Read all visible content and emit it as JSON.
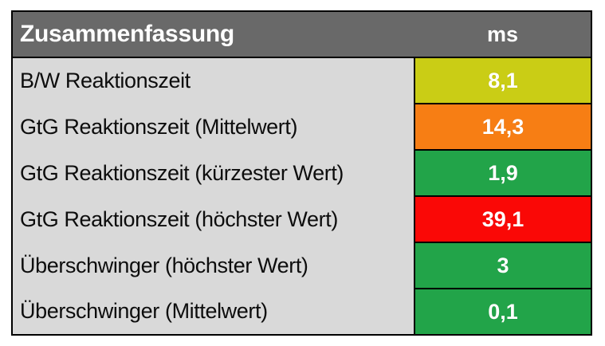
{
  "table": {
    "header": {
      "title": "Zusammenfassung",
      "unit": "ms"
    },
    "rows": [
      {
        "label": "B/W Reaktionszeit",
        "value": "8,1",
        "color": "#cacd15"
      },
      {
        "label": "GtG Reaktionszeit (Mittelwert)",
        "value": "14,3",
        "color": "#f77e14"
      },
      {
        "label": "GtG Reaktionszeit (kürzester Wert)",
        "value": "1,9",
        "color": "#22a449"
      },
      {
        "label": "GtG Reaktionszeit (höchster Wert)",
        "value": "39,1",
        "color": "#fa0806"
      },
      {
        "label": "Überschwinger (höchster Wert)",
        "value": "3",
        "color": "#22a449"
      },
      {
        "label": "Überschwinger (Mittelwert)",
        "value": "0,1",
        "color": "#22a449"
      }
    ],
    "colors": {
      "header_bg": "#696969",
      "header_text": "#ffffff",
      "label_bg": "#d9d9d9",
      "label_text": "#0d0d0d",
      "value_text": "#ffffff",
      "border": "#000000",
      "page_bg": "#ffffff"
    }
  },
  "chart_data": {
    "type": "table",
    "title": "Zusammenfassung",
    "unit": "ms",
    "columns": [
      "Zusammenfassung",
      "ms"
    ],
    "rows": [
      {
        "label": "B/W Reaktionszeit",
        "value_ms": 8.1,
        "rating_color": "yellow-green"
      },
      {
        "label": "GtG Reaktionszeit (Mittelwert)",
        "value_ms": 14.3,
        "rating_color": "orange"
      },
      {
        "label": "GtG Reaktionszeit (kürzester Wert)",
        "value_ms": 1.9,
        "rating_color": "green"
      },
      {
        "label": "GtG Reaktionszeit (höchster Wert)",
        "value_ms": 39.1,
        "rating_color": "red"
      },
      {
        "label": "Überschwinger (höchster Wert)",
        "value_ms": 3,
        "rating_color": "green"
      },
      {
        "label": "Überschwinger (Mittelwert)",
        "value_ms": 0.1,
        "rating_color": "green"
      }
    ]
  }
}
